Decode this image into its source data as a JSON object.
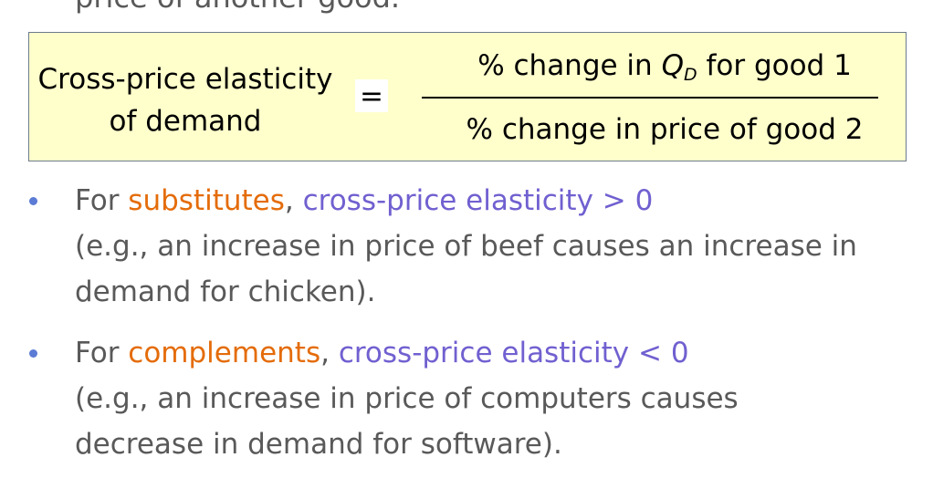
{
  "previous_text_cut": "price of another good.",
  "formula": {
    "lhs_line1": "Cross-price elasticity",
    "lhs_line2": "of demand",
    "equals": "=",
    "numerator_pre": "% change in ",
    "numerator_q": "Q",
    "numerator_sub": "D",
    "numerator_post": " for good 1",
    "denominator": "% change in price of good 2"
  },
  "bullets": [
    {
      "prefix": "For ",
      "keyword": "substitutes",
      "comma": ", ",
      "rule": "cross-price elasticity > 0",
      "example_line1": "(e.g., an increase in price of beef causes an increase in",
      "example_line2": "demand for chicken)."
    },
    {
      "prefix": "For ",
      "keyword": "complements",
      "comma": ", ",
      "rule": "cross-price elasticity < 0",
      "example_line1": "(e.g., an increase in price of computers causes",
      "example_line2": "decrease in demand for software)."
    }
  ],
  "colors": {
    "formula_background": "#ffffcc",
    "keyword": "#e46c0a",
    "rule": "#7060d0",
    "bullet": "#5b7bd5",
    "body_text": "#595959"
  }
}
